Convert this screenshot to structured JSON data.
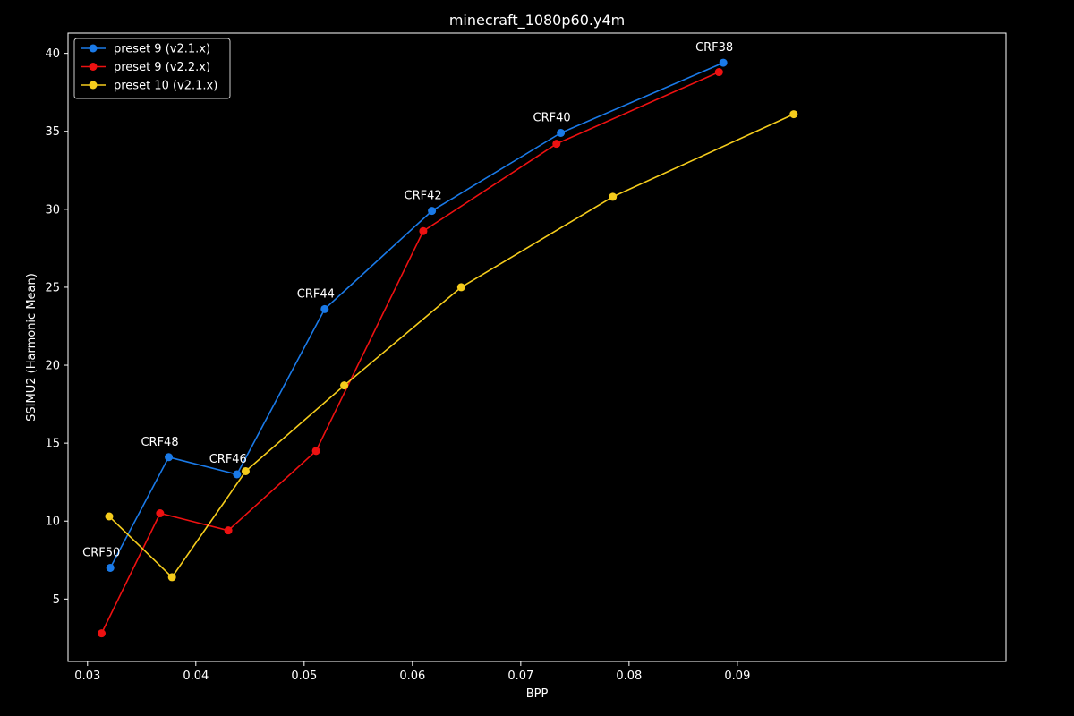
{
  "chart_data": {
    "type": "line",
    "title": "minecraft_1080p60.y4m",
    "xlabel": "BPP",
    "ylabel": "SSIMU2 (Harmonic Mean)",
    "xlim": [
      0.0282,
      0.1148
    ],
    "ylim": [
      1.0,
      41.3
    ],
    "xticks": [
      0.03,
      0.04,
      0.05,
      0.06,
      0.07,
      0.08,
      0.09
    ],
    "xtick_labels": [
      "0.03",
      "0.04",
      "0.05",
      "0.06",
      "0.07",
      "0.08",
      "0.09"
    ],
    "yticks": [
      5,
      10,
      15,
      20,
      25,
      30,
      35,
      40
    ],
    "ytick_labels": [
      "5",
      "10",
      "15",
      "20",
      "25",
      "30",
      "35",
      "40"
    ],
    "grid": false,
    "legend_position": "top-left",
    "background": "#000000",
    "series": [
      {
        "name": "preset 9 (v2.1.x)",
        "color": "#1a7ae8",
        "x": [
          0.0321,
          0.0375,
          0.0438,
          0.0519,
          0.0618,
          0.0737,
          0.0887
        ],
        "y": [
          7.0,
          14.1,
          13.0,
          23.6,
          29.9,
          34.9,
          39.4
        ]
      },
      {
        "name": "preset 9 (v2.2.x)",
        "color": "#ee1111",
        "x": [
          0.0313,
          0.0367,
          0.043,
          0.0511,
          0.061,
          0.0733,
          0.0883
        ],
        "y": [
          2.8,
          10.5,
          9.4,
          14.5,
          28.6,
          34.2,
          38.8
        ]
      },
      {
        "name": "preset 10 (v2.1.x)",
        "color": "#f5cc1c",
        "x": [
          0.032,
          0.0378,
          0.0446,
          0.0537,
          0.0645,
          0.0785,
          0.0952
        ],
        "y": [
          10.3,
          6.4,
          13.2,
          18.7,
          25.0,
          30.8,
          36.1
        ]
      }
    ],
    "annotations": [
      {
        "text": "CRF50",
        "x": 0.0321,
        "y": 7.0
      },
      {
        "text": "CRF48",
        "x": 0.0375,
        "y": 14.1
      },
      {
        "text": "CRF46",
        "x": 0.0438,
        "y": 13.0
      },
      {
        "text": "CRF44",
        "x": 0.0519,
        "y": 23.6
      },
      {
        "text": "CRF42",
        "x": 0.0618,
        "y": 29.9
      },
      {
        "text": "CRF40",
        "x": 0.0737,
        "y": 34.9
      },
      {
        "text": "CRF38",
        "x": 0.0887,
        "y": 39.4
      }
    ]
  }
}
